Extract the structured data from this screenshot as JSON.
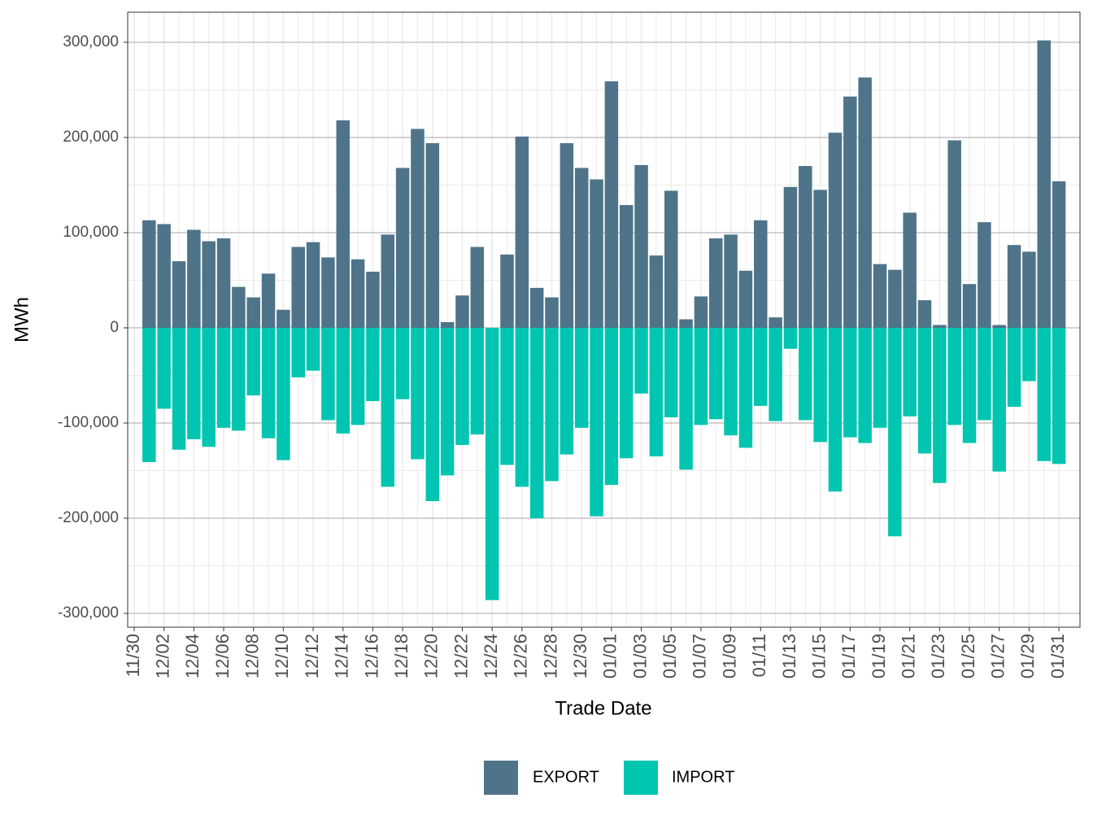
{
  "chart_data": {
    "type": "bar",
    "x_label": "Trade Date",
    "y_label": "MWh",
    "categories": [
      "11/30",
      null,
      "12/02",
      null,
      "12/04",
      null,
      "12/06",
      null,
      "12/08",
      null,
      "12/10",
      null,
      "12/12",
      null,
      "12/14",
      null,
      "12/16",
      null,
      "12/18",
      null,
      "12/20",
      null,
      "12/22",
      null,
      "12/24",
      null,
      "12/26",
      null,
      "12/28",
      null,
      "12/30",
      null,
      "01/01",
      null,
      "01/03",
      null,
      "01/05",
      null,
      "01/07",
      null,
      "01/09",
      null,
      "01/11",
      null,
      "01/13",
      null,
      "01/15",
      null,
      "01/17",
      null,
      "01/19",
      null,
      "01/21",
      null,
      "01/23",
      null,
      "01/25",
      null,
      "01/27",
      null,
      "01/29",
      null,
      "01/31"
    ],
    "series": [
      {
        "name": "EXPORT",
        "color": "#4f7489",
        "values": [
          null,
          113000,
          109000,
          70000,
          103000,
          91000,
          94000,
          43000,
          32000,
          57000,
          19000,
          85000,
          90000,
          74000,
          218000,
          72000,
          59000,
          98000,
          168000,
          209000,
          194000,
          6000,
          34000,
          85000,
          0,
          77000,
          201000,
          42000,
          32000,
          194000,
          168000,
          156000,
          259000,
          129000,
          171000,
          76000,
          144000,
          9000,
          33000,
          94000,
          98000,
          60000,
          113000,
          11000,
          148000,
          170000,
          145000,
          205000,
          243000,
          263000,
          67000,
          61000,
          121000,
          29000,
          3000,
          197000,
          46000,
          111000,
          3000,
          87000,
          80000,
          302000,
          154000
        ]
      },
      {
        "name": "IMPORT",
        "color": "#00c5b0",
        "values": [
          null,
          -141000,
          -85000,
          -128000,
          -117000,
          -125000,
          -105000,
          -108000,
          -71000,
          -116000,
          -139000,
          -52000,
          -45000,
          -97000,
          -111000,
          -102000,
          -77000,
          -167000,
          -75000,
          -138000,
          -182000,
          -155000,
          -123000,
          -112000,
          -286000,
          -144000,
          -167000,
          -200000,
          -161000,
          -133000,
          -105000,
          -198000,
          -165000,
          -137000,
          -69000,
          -135000,
          -94000,
          -149000,
          -102000,
          -96000,
          -113000,
          -126000,
          -82000,
          -98000,
          -22000,
          -97000,
          -120000,
          -172000,
          -115000,
          -121000,
          -105000,
          -219000,
          -93000,
          -132000,
          -163000,
          -102000,
          -121000,
          -97000,
          -151000,
          -83000,
          -56000,
          -140000,
          -143000
        ]
      }
    ],
    "ylim": [
      -314500,
      331600
    ],
    "yticks": [
      {
        "value": -300000,
        "label": "-300,000"
      },
      {
        "value": -200000,
        "label": "-200,000"
      },
      {
        "value": -100000,
        "label": "-100,000"
      },
      0,
      {
        "value": 100000,
        "label": "100,000"
      },
      {
        "value": 200000,
        "label": "200,000"
      },
      {
        "value": 300000,
        "label": "300,000"
      }
    ],
    "grid": true,
    "legend": "bottom"
  }
}
